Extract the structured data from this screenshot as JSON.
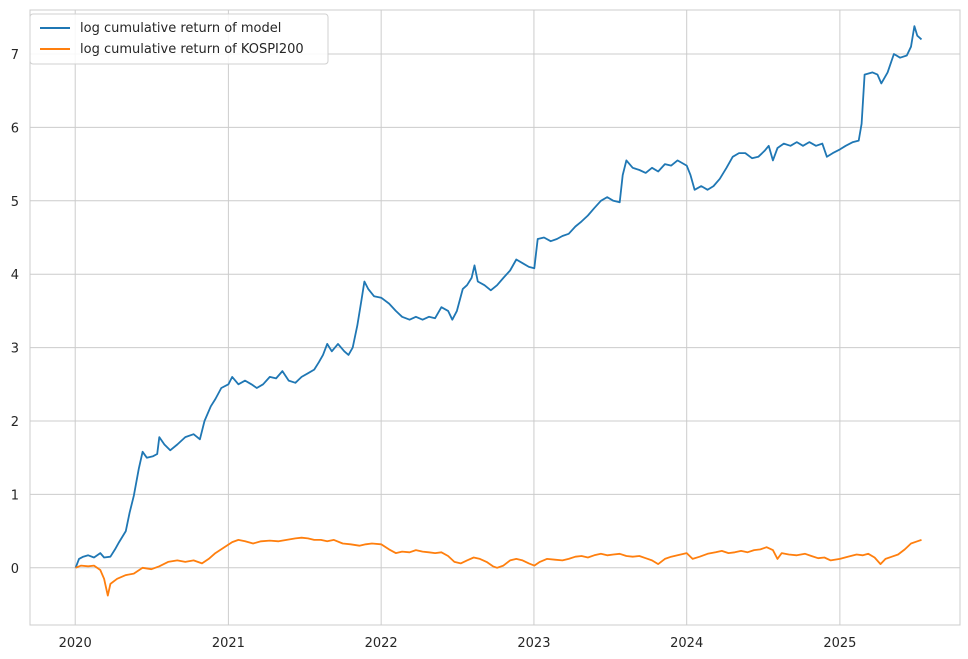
{
  "chart_data": {
    "type": "line",
    "x_axis": {
      "type": "date",
      "ticks": [
        "2020",
        "2021",
        "2022",
        "2023",
        "2024",
        "2025"
      ],
      "tick_values": [
        "2020-01-01",
        "2021-01-01",
        "2022-01-01",
        "2023-01-01",
        "2024-01-01",
        "2025-01-01"
      ],
      "range": [
        "2019-09-15",
        "2025-10-15"
      ]
    },
    "y_axis": {
      "ticks": [
        0,
        1,
        2,
        3,
        4,
        5,
        6,
        7
      ],
      "range": [
        -0.78,
        7.6
      ]
    },
    "grid": true,
    "legend": {
      "position": "top-left"
    },
    "colors": {
      "model": "#1f77b4",
      "kospi": "#ff7f0e",
      "grid": "#cccccc",
      "spine": "#cccccc"
    },
    "series": [
      {
        "name": "log cumulative return of model",
        "points": [
          [
            "2020-01-02",
            0.0
          ],
          [
            "2020-01-10",
            0.12
          ],
          [
            "2020-01-20",
            0.15
          ],
          [
            "2020-02-01",
            0.17
          ],
          [
            "2020-02-15",
            0.14
          ],
          [
            "2020-03-01",
            0.2
          ],
          [
            "2020-03-10",
            0.14
          ],
          [
            "2020-03-25",
            0.15
          ],
          [
            "2020-04-05",
            0.25
          ],
          [
            "2020-04-15",
            0.35
          ],
          [
            "2020-05-01",
            0.5
          ],
          [
            "2020-05-10",
            0.75
          ],
          [
            "2020-05-20",
            0.98
          ],
          [
            "2020-06-01",
            1.35
          ],
          [
            "2020-06-10",
            1.58
          ],
          [
            "2020-06-20",
            1.5
          ],
          [
            "2020-07-05",
            1.52
          ],
          [
            "2020-07-15",
            1.55
          ],
          [
            "2020-07-20",
            1.78
          ],
          [
            "2020-08-01",
            1.68
          ],
          [
            "2020-08-15",
            1.6
          ],
          [
            "2020-09-01",
            1.68
          ],
          [
            "2020-09-20",
            1.78
          ],
          [
            "2020-10-10",
            1.82
          ],
          [
            "2020-10-25",
            1.75
          ],
          [
            "2020-11-05",
            2.0
          ],
          [
            "2020-11-20",
            2.2
          ],
          [
            "2020-12-01",
            2.3
          ],
          [
            "2020-12-15",
            2.45
          ],
          [
            "2021-01-01",
            2.5
          ],
          [
            "2021-01-10",
            2.6
          ],
          [
            "2021-01-25",
            2.5
          ],
          [
            "2021-02-10",
            2.55
          ],
          [
            "2021-02-25",
            2.5
          ],
          [
            "2021-03-10",
            2.45
          ],
          [
            "2021-03-25",
            2.5
          ],
          [
            "2021-04-10",
            2.6
          ],
          [
            "2021-04-25",
            2.58
          ],
          [
            "2021-05-10",
            2.68
          ],
          [
            "2021-05-25",
            2.55
          ],
          [
            "2021-06-10",
            2.52
          ],
          [
            "2021-06-25",
            2.6
          ],
          [
            "2021-07-10",
            2.65
          ],
          [
            "2021-07-25",
            2.7
          ],
          [
            "2021-08-05",
            2.8
          ],
          [
            "2021-08-15",
            2.9
          ],
          [
            "2021-08-25",
            3.05
          ],
          [
            "2021-09-05",
            2.95
          ],
          [
            "2021-09-20",
            3.05
          ],
          [
            "2021-10-05",
            2.95
          ],
          [
            "2021-10-15",
            2.9
          ],
          [
            "2021-10-25",
            3.0
          ],
          [
            "2021-11-05",
            3.3
          ],
          [
            "2021-11-15",
            3.65
          ],
          [
            "2021-11-22",
            3.9
          ],
          [
            "2021-12-01",
            3.8
          ],
          [
            "2021-12-15",
            3.7
          ],
          [
            "2022-01-01",
            3.68
          ],
          [
            "2022-01-20",
            3.6
          ],
          [
            "2022-02-05",
            3.5
          ],
          [
            "2022-02-20",
            3.42
          ],
          [
            "2022-03-10",
            3.38
          ],
          [
            "2022-03-25",
            3.42
          ],
          [
            "2022-04-10",
            3.38
          ],
          [
            "2022-04-25",
            3.42
          ],
          [
            "2022-05-10",
            3.4
          ],
          [
            "2022-05-25",
            3.55
          ],
          [
            "2022-06-10",
            3.5
          ],
          [
            "2022-06-20",
            3.38
          ],
          [
            "2022-07-01",
            3.5
          ],
          [
            "2022-07-15",
            3.8
          ],
          [
            "2022-07-25",
            3.85
          ],
          [
            "2022-08-05",
            3.95
          ],
          [
            "2022-08-12",
            4.12
          ],
          [
            "2022-08-20",
            3.9
          ],
          [
            "2022-09-05",
            3.85
          ],
          [
            "2022-09-20",
            3.78
          ],
          [
            "2022-10-05",
            3.85
          ],
          [
            "2022-10-20",
            3.95
          ],
          [
            "2022-11-05",
            4.05
          ],
          [
            "2022-11-20",
            4.2
          ],
          [
            "2022-12-05",
            4.15
          ],
          [
            "2022-12-20",
            4.1
          ],
          [
            "2023-01-02",
            4.08
          ],
          [
            "2023-01-10",
            4.48
          ],
          [
            "2023-01-25",
            4.5
          ],
          [
            "2023-02-10",
            4.45
          ],
          [
            "2023-02-25",
            4.48
          ],
          [
            "2023-03-10",
            4.52
          ],
          [
            "2023-03-25",
            4.55
          ],
          [
            "2023-04-10",
            4.65
          ],
          [
            "2023-04-25",
            4.72
          ],
          [
            "2023-05-10",
            4.8
          ],
          [
            "2023-05-25",
            4.9
          ],
          [
            "2023-06-10",
            5.0
          ],
          [
            "2023-06-25",
            5.05
          ],
          [
            "2023-07-10",
            5.0
          ],
          [
            "2023-07-25",
            4.98
          ],
          [
            "2023-08-01",
            5.35
          ],
          [
            "2023-08-10",
            5.55
          ],
          [
            "2023-08-25",
            5.45
          ],
          [
            "2023-09-10",
            5.42
          ],
          [
            "2023-09-25",
            5.38
          ],
          [
            "2023-10-10",
            5.45
          ],
          [
            "2023-10-25",
            5.4
          ],
          [
            "2023-11-10",
            5.5
          ],
          [
            "2023-11-25",
            5.48
          ],
          [
            "2023-12-10",
            5.55
          ],
          [
            "2024-01-01",
            5.48
          ],
          [
            "2024-01-10",
            5.35
          ],
          [
            "2024-01-20",
            5.15
          ],
          [
            "2024-02-05",
            5.2
          ],
          [
            "2024-02-20",
            5.15
          ],
          [
            "2024-03-05",
            5.2
          ],
          [
            "2024-03-20",
            5.3
          ],
          [
            "2024-04-05",
            5.45
          ],
          [
            "2024-04-20",
            5.6
          ],
          [
            "2024-05-05",
            5.65
          ],
          [
            "2024-05-20",
            5.65
          ],
          [
            "2024-06-05",
            5.58
          ],
          [
            "2024-06-20",
            5.6
          ],
          [
            "2024-07-05",
            5.68
          ],
          [
            "2024-07-15",
            5.75
          ],
          [
            "2024-07-25",
            5.55
          ],
          [
            "2024-08-05",
            5.72
          ],
          [
            "2024-08-20",
            5.78
          ],
          [
            "2024-09-05",
            5.75
          ],
          [
            "2024-09-20",
            5.8
          ],
          [
            "2024-10-05",
            5.75
          ],
          [
            "2024-10-20",
            5.8
          ],
          [
            "2024-11-05",
            5.75
          ],
          [
            "2024-11-20",
            5.78
          ],
          [
            "2024-12-01",
            5.6
          ],
          [
            "2024-12-15",
            5.65
          ],
          [
            "2025-01-01",
            5.7
          ],
          [
            "2025-01-15",
            5.75
          ],
          [
            "2025-02-01",
            5.8
          ],
          [
            "2025-02-15",
            5.82
          ],
          [
            "2025-02-22",
            6.05
          ],
          [
            "2025-03-01",
            6.72
          ],
          [
            "2025-03-20",
            6.75
          ],
          [
            "2025-04-01",
            6.72
          ],
          [
            "2025-04-10",
            6.6
          ],
          [
            "2025-04-25",
            6.75
          ],
          [
            "2025-05-10",
            7.0
          ],
          [
            "2025-05-25",
            6.95
          ],
          [
            "2025-06-10",
            6.98
          ],
          [
            "2025-06-20",
            7.1
          ],
          [
            "2025-06-28",
            7.38
          ],
          [
            "2025-07-05",
            7.25
          ],
          [
            "2025-07-15",
            7.2
          ]
        ]
      },
      {
        "name": "log cumulative return of KOSPI200",
        "points": [
          [
            "2020-01-02",
            0.0
          ],
          [
            "2020-01-15",
            0.03
          ],
          [
            "2020-02-01",
            0.02
          ],
          [
            "2020-02-15",
            0.03
          ],
          [
            "2020-03-01",
            -0.03
          ],
          [
            "2020-03-10",
            -0.15
          ],
          [
            "2020-03-19",
            -0.38
          ],
          [
            "2020-03-25",
            -0.22
          ],
          [
            "2020-04-10",
            -0.15
          ],
          [
            "2020-05-01",
            -0.1
          ],
          [
            "2020-05-20",
            -0.08
          ],
          [
            "2020-06-10",
            0.0
          ],
          [
            "2020-07-01",
            -0.02
          ],
          [
            "2020-07-20",
            0.02
          ],
          [
            "2020-08-10",
            0.08
          ],
          [
            "2020-09-01",
            0.1
          ],
          [
            "2020-09-20",
            0.08
          ],
          [
            "2020-10-10",
            0.1
          ],
          [
            "2020-10-30",
            0.06
          ],
          [
            "2020-11-15",
            0.12
          ],
          [
            "2020-12-01",
            0.2
          ],
          [
            "2020-12-20",
            0.27
          ],
          [
            "2021-01-10",
            0.35
          ],
          [
            "2021-01-25",
            0.38
          ],
          [
            "2021-02-10",
            0.36
          ],
          [
            "2021-03-01",
            0.33
          ],
          [
            "2021-03-20",
            0.36
          ],
          [
            "2021-04-10",
            0.37
          ],
          [
            "2021-05-01",
            0.36
          ],
          [
            "2021-05-20",
            0.38
          ],
          [
            "2021-06-10",
            0.4
          ],
          [
            "2021-06-25",
            0.41
          ],
          [
            "2021-07-10",
            0.4
          ],
          [
            "2021-07-25",
            0.38
          ],
          [
            "2021-08-10",
            0.38
          ],
          [
            "2021-08-25",
            0.36
          ],
          [
            "2021-09-10",
            0.38
          ],
          [
            "2021-10-01",
            0.33
          ],
          [
            "2021-10-20",
            0.32
          ],
          [
            "2021-11-10",
            0.3
          ],
          [
            "2021-11-25",
            0.32
          ],
          [
            "2021-12-10",
            0.33
          ],
          [
            "2022-01-01",
            0.32
          ],
          [
            "2022-01-20",
            0.25
          ],
          [
            "2022-02-05",
            0.2
          ],
          [
            "2022-02-20",
            0.22
          ],
          [
            "2022-03-10",
            0.21
          ],
          [
            "2022-03-25",
            0.24
          ],
          [
            "2022-04-10",
            0.22
          ],
          [
            "2022-04-25",
            0.21
          ],
          [
            "2022-05-10",
            0.2
          ],
          [
            "2022-05-25",
            0.21
          ],
          [
            "2022-06-10",
            0.16
          ],
          [
            "2022-06-25",
            0.08
          ],
          [
            "2022-07-10",
            0.06
          ],
          [
            "2022-07-25",
            0.1
          ],
          [
            "2022-08-10",
            0.14
          ],
          [
            "2022-08-25",
            0.12
          ],
          [
            "2022-09-10",
            0.08
          ],
          [
            "2022-09-25",
            0.02
          ],
          [
            "2022-10-05",
            0.0
          ],
          [
            "2022-10-20",
            0.03
          ],
          [
            "2022-11-05",
            0.1
          ],
          [
            "2022-11-20",
            0.12
          ],
          [
            "2022-12-05",
            0.1
          ],
          [
            "2022-12-20",
            0.06
          ],
          [
            "2023-01-02",
            0.03
          ],
          [
            "2023-01-15",
            0.08
          ],
          [
            "2023-02-01",
            0.12
          ],
          [
            "2023-02-20",
            0.11
          ],
          [
            "2023-03-10",
            0.1
          ],
          [
            "2023-03-25",
            0.12
          ],
          [
            "2023-04-10",
            0.15
          ],
          [
            "2023-04-25",
            0.16
          ],
          [
            "2023-05-10",
            0.14
          ],
          [
            "2023-05-25",
            0.17
          ],
          [
            "2023-06-10",
            0.19
          ],
          [
            "2023-06-25",
            0.17
          ],
          [
            "2023-07-10",
            0.18
          ],
          [
            "2023-07-25",
            0.19
          ],
          [
            "2023-08-10",
            0.16
          ],
          [
            "2023-08-25",
            0.15
          ],
          [
            "2023-09-10",
            0.16
          ],
          [
            "2023-09-25",
            0.13
          ],
          [
            "2023-10-10",
            0.1
          ],
          [
            "2023-10-25",
            0.05
          ],
          [
            "2023-11-10",
            0.12
          ],
          [
            "2023-11-25",
            0.15
          ],
          [
            "2023-12-10",
            0.17
          ],
          [
            "2024-01-01",
            0.2
          ],
          [
            "2024-01-15",
            0.12
          ],
          [
            "2024-02-01",
            0.15
          ],
          [
            "2024-02-20",
            0.19
          ],
          [
            "2024-03-10",
            0.21
          ],
          [
            "2024-03-25",
            0.23
          ],
          [
            "2024-04-10",
            0.2
          ],
          [
            "2024-04-25",
            0.21
          ],
          [
            "2024-05-10",
            0.23
          ],
          [
            "2024-05-25",
            0.21
          ],
          [
            "2024-06-10",
            0.24
          ],
          [
            "2024-06-25",
            0.25
          ],
          [
            "2024-07-10",
            0.28
          ],
          [
            "2024-07-25",
            0.24
          ],
          [
            "2024-08-05",
            0.12
          ],
          [
            "2024-08-15",
            0.2
          ],
          [
            "2024-09-01",
            0.18
          ],
          [
            "2024-09-20",
            0.17
          ],
          [
            "2024-10-10",
            0.19
          ],
          [
            "2024-10-25",
            0.16
          ],
          [
            "2024-11-10",
            0.13
          ],
          [
            "2024-11-25",
            0.14
          ],
          [
            "2024-12-10",
            0.1
          ],
          [
            "2025-01-01",
            0.12
          ],
          [
            "2025-01-20",
            0.15
          ],
          [
            "2025-02-10",
            0.18
          ],
          [
            "2025-02-25",
            0.17
          ],
          [
            "2025-03-10",
            0.19
          ],
          [
            "2025-03-25",
            0.14
          ],
          [
            "2025-04-08",
            0.05
          ],
          [
            "2025-04-20",
            0.12
          ],
          [
            "2025-05-05",
            0.15
          ],
          [
            "2025-05-20",
            0.18
          ],
          [
            "2025-06-05",
            0.25
          ],
          [
            "2025-06-20",
            0.33
          ],
          [
            "2025-07-05",
            0.36
          ],
          [
            "2025-07-15",
            0.38
          ]
        ]
      }
    ]
  }
}
